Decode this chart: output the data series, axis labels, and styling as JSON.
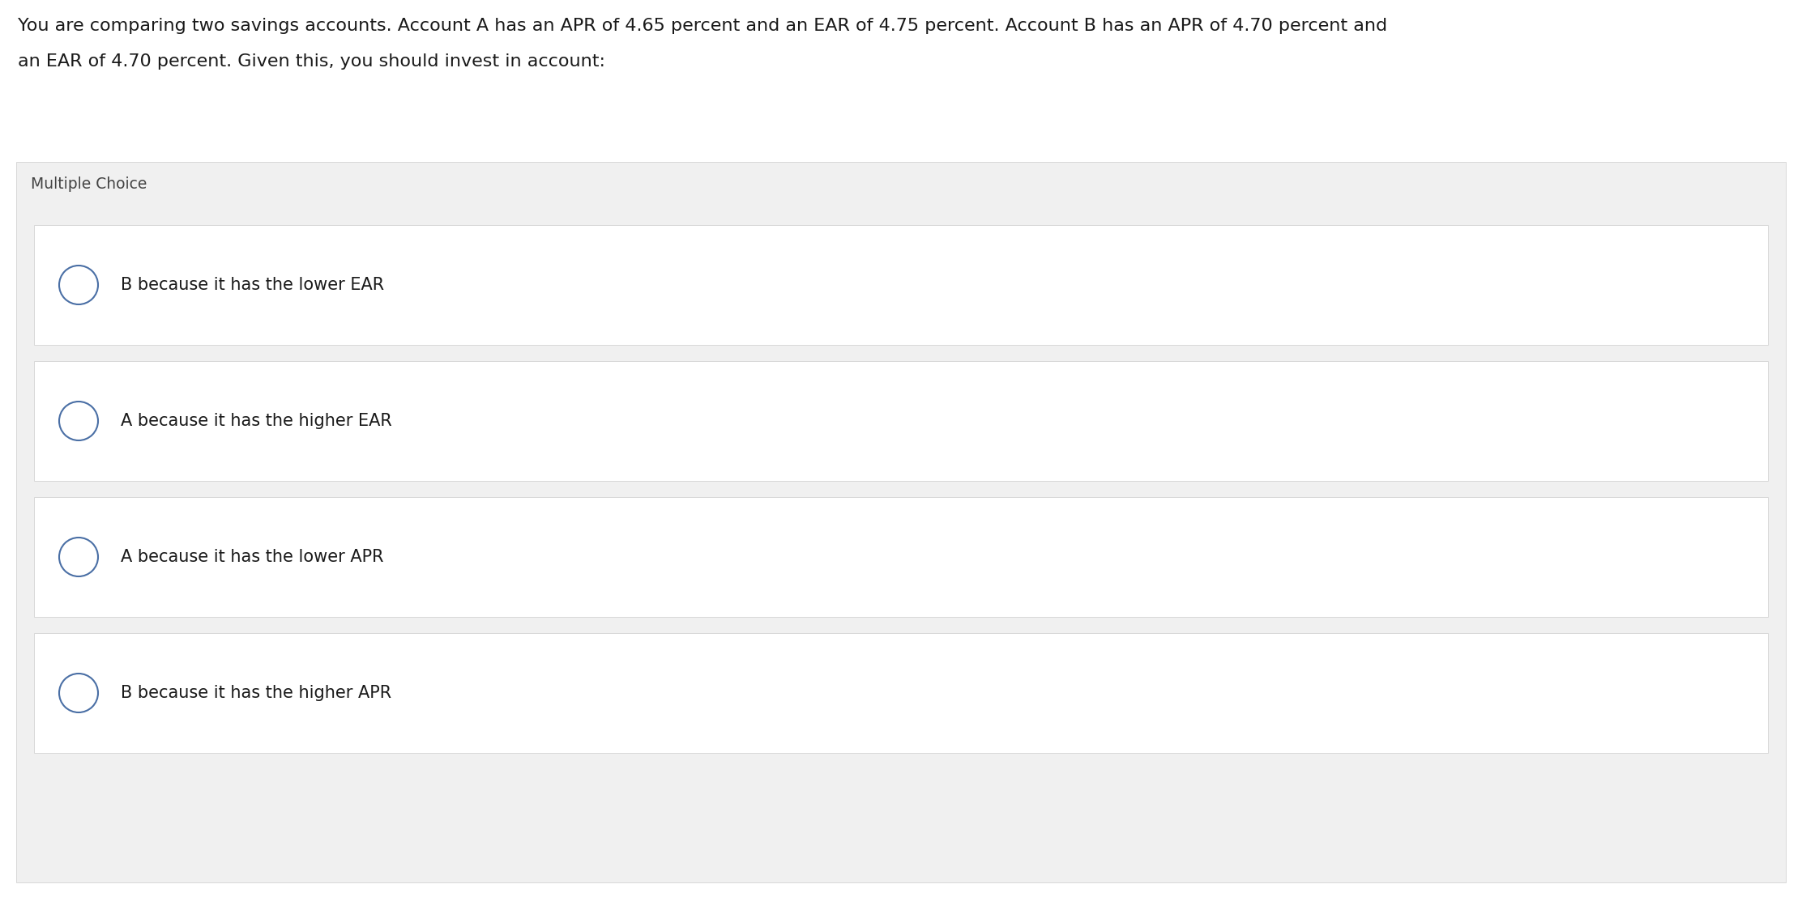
{
  "question_text_line1": "You are comparing two savings accounts. Account A has an APR of 4.65 percent and an EAR of 4.75 percent. Account B has an APR of 4.70 percent and",
  "question_text_line2": "an EAR of 4.70 percent. Given this, you should invest in account:",
  "section_label": "Multiple Choice",
  "choices": [
    "B because it has the lower EAR",
    "A because it has the higher EAR",
    "A because it has the lower APR",
    "B because it has the higher APR"
  ],
  "bg_color": "#ffffff",
  "section_bg_color": "#f0f0f0",
  "choice_bg_color": "#ffffff",
  "choice_border_color": "#d8d8d8",
  "section_border_color": "#cccccc",
  "text_color": "#1a1a1a",
  "section_label_color": "#444444",
  "circle_edge_color": "#4a6fa5",
  "circle_face_color": "#ffffff",
  "question_font_size": 16,
  "section_font_size": 13.5,
  "choice_font_size": 15,
  "fig_width": 22.24,
  "fig_height": 11.08,
  "dpi": 100
}
